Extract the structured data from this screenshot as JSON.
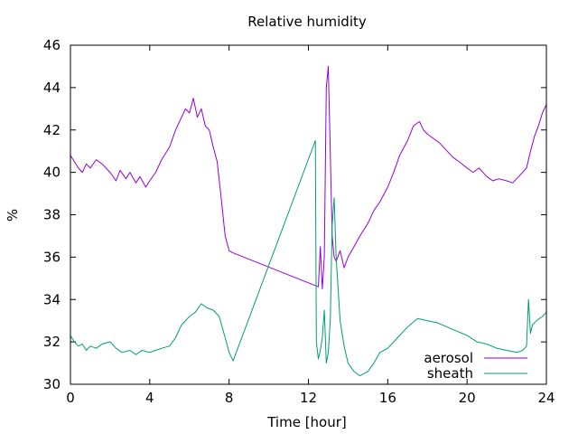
{
  "chart_data": {
    "type": "line",
    "title": "Relative humidity",
    "xlabel": "Time [hour]",
    "ylabel": "%",
    "xlim": [
      0,
      24
    ],
    "ylim": [
      30,
      46
    ],
    "xticks": [
      0,
      4,
      8,
      12,
      16,
      20,
      24
    ],
    "yticks": [
      30,
      32,
      34,
      36,
      38,
      40,
      42,
      44,
      46
    ],
    "grid": false,
    "legend_position": "bottom-right",
    "series": [
      {
        "name": "aerosol",
        "color": "#9400d3",
        "x": [
          0,
          0.2,
          0.4,
          0.6,
          0.8,
          1.0,
          1.3,
          1.6,
          2.0,
          2.3,
          2.5,
          2.8,
          3.0,
          3.3,
          3.5,
          3.8,
          4.0,
          4.3,
          4.6,
          5.0,
          5.3,
          5.6,
          5.8,
          6.0,
          6.2,
          6.4,
          6.6,
          6.8,
          7.0,
          7.2,
          7.4,
          7.6,
          7.8,
          8.0,
          8.2,
          12.5,
          12.6,
          12.7,
          12.8,
          12.9,
          13.0,
          13.1,
          13.2,
          13.3,
          13.4,
          13.6,
          13.8,
          14.0,
          14.3,
          14.6,
          15.0,
          15.3,
          15.6,
          16.0,
          16.3,
          16.6,
          17.0,
          17.3,
          17.6,
          17.8,
          18.0,
          18.3,
          18.6,
          19.0,
          19.3,
          19.6,
          20.0,
          20.3,
          20.6,
          21.0,
          21.3,
          21.6,
          22.0,
          22.3,
          22.6,
          23.0,
          23.2,
          23.4,
          23.6,
          23.8,
          24.0
        ],
        "y": [
          40.8,
          40.5,
          40.2,
          40.0,
          40.4,
          40.2,
          40.6,
          40.4,
          40.0,
          39.6,
          40.1,
          39.7,
          40.0,
          39.5,
          39.8,
          39.3,
          39.6,
          40.0,
          40.6,
          41.2,
          42.0,
          42.6,
          43.0,
          42.8,
          43.5,
          42.6,
          43.0,
          42.2,
          42.0,
          41.2,
          40.5,
          38.8,
          37.0,
          36.3,
          36.2,
          34.6,
          36.5,
          34.5,
          36.0,
          44.0,
          45.0,
          41.0,
          37.0,
          36.0,
          35.8,
          36.3,
          35.5,
          36.0,
          36.5,
          37.0,
          37.6,
          38.2,
          38.6,
          39.3,
          40.0,
          40.8,
          41.5,
          42.2,
          42.4,
          42.0,
          41.8,
          41.6,
          41.4,
          41.0,
          40.7,
          40.5,
          40.2,
          40.0,
          40.2,
          39.8,
          39.6,
          39.7,
          39.6,
          39.5,
          39.8,
          40.2,
          41.0,
          41.7,
          42.2,
          42.8,
          43.2
        ]
      },
      {
        "name": "sheath",
        "color": "#009e73",
        "x": [
          0,
          0.2,
          0.4,
          0.6,
          0.8,
          1.0,
          1.3,
          1.6,
          2.0,
          2.3,
          2.6,
          3.0,
          3.3,
          3.6,
          4.0,
          4.3,
          4.6,
          5.0,
          5.3,
          5.6,
          6.0,
          6.3,
          6.6,
          6.9,
          7.2,
          7.5,
          7.8,
          8.0,
          8.2,
          12.35,
          12.4,
          12.5,
          12.6,
          12.7,
          12.8,
          12.9,
          13.0,
          13.1,
          13.2,
          13.3,
          13.4,
          13.6,
          13.8,
          14.0,
          14.3,
          14.6,
          15.0,
          15.3,
          15.6,
          16.0,
          16.5,
          17.0,
          17.5,
          18.0,
          18.5,
          19.0,
          19.5,
          20.0,
          20.5,
          21.0,
          21.5,
          22.0,
          22.5,
          22.8,
          23.0,
          23.1,
          23.2,
          23.3,
          23.5,
          23.8,
          24.0
        ],
        "y": [
          32.3,
          32.0,
          31.8,
          31.9,
          31.6,
          31.8,
          31.7,
          31.9,
          32.0,
          31.7,
          31.5,
          31.6,
          31.4,
          31.6,
          31.5,
          31.6,
          31.7,
          31.8,
          32.2,
          32.8,
          33.2,
          33.4,
          33.8,
          33.6,
          33.5,
          33.2,
          32.2,
          31.5,
          31.1,
          41.5,
          32.0,
          31.2,
          31.6,
          32.2,
          33.5,
          31.0,
          31.5,
          33.0,
          37.5,
          38.8,
          36.0,
          33.0,
          31.8,
          31.0,
          30.6,
          30.4,
          30.6,
          31.0,
          31.5,
          31.7,
          32.2,
          32.7,
          33.1,
          33.0,
          32.9,
          32.7,
          32.5,
          32.3,
          32.0,
          31.9,
          31.7,
          31.6,
          31.5,
          31.6,
          31.8,
          34.0,
          32.4,
          32.8,
          33.0,
          33.2,
          33.4
        ]
      }
    ]
  }
}
